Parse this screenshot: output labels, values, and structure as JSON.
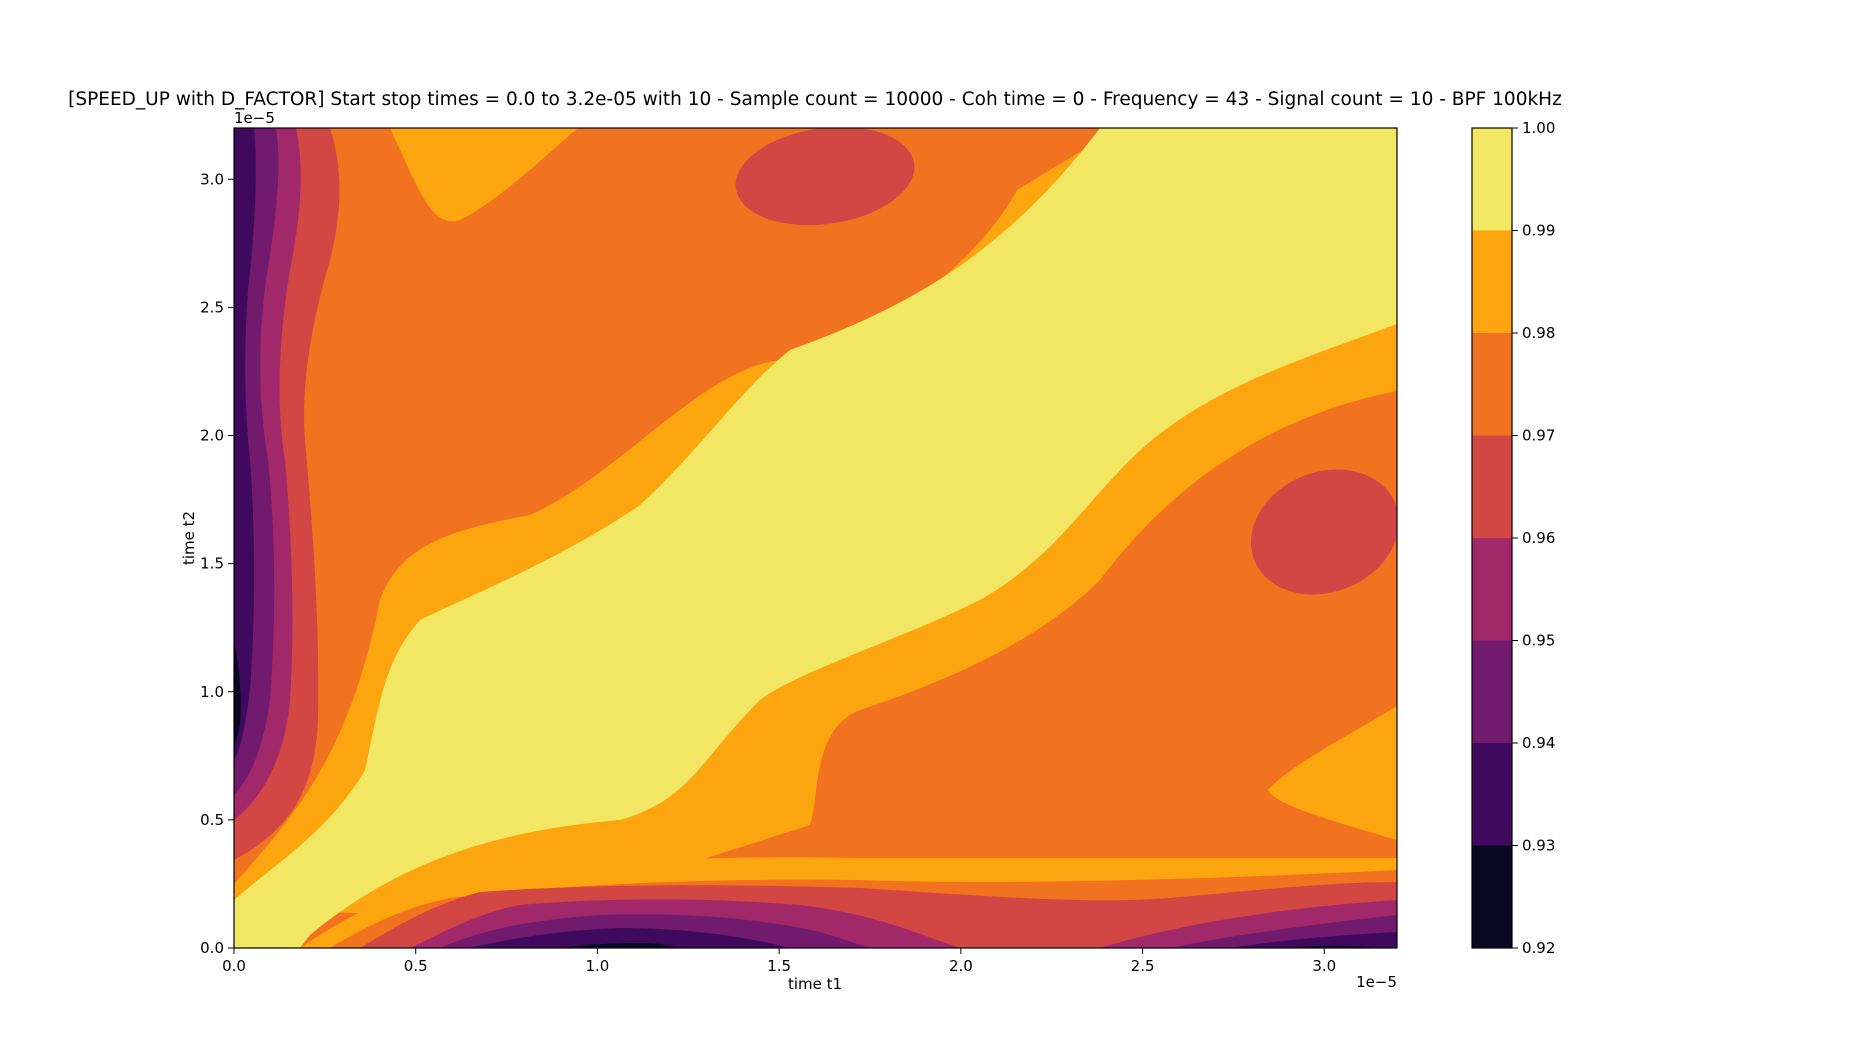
{
  "chart_data": {
    "type": "heatmap",
    "subtype": "filled-contour",
    "title": "[SPEED_UP with D_FACTOR] Start stop times = 0.0 to 3.2e-05 with 10 - Sample count = 10000 - Coh time = 0 - Frequency = 43 - Signal count = 10 - BPF 100kHz",
    "xlabel": "time t1",
    "ylabel": "time t2",
    "x_offset_label": "1e−5",
    "y_offset_label": "1e−5",
    "xlim": [
      0.0,
      3.2
    ],
    "ylim": [
      0.0,
      3.2
    ],
    "xticks": [
      "0.0",
      "0.5",
      "1.0",
      "1.5",
      "2.0",
      "2.5",
      "3.0"
    ],
    "yticks": [
      "0.0",
      "0.5",
      "1.0",
      "1.5",
      "2.0",
      "2.5",
      "3.0"
    ],
    "colorbar": {
      "levels": [
        0.92,
        0.93,
        0.94,
        0.95,
        0.96,
        0.97,
        0.98,
        0.99,
        1.0
      ],
      "tick_labels": [
        "0.92",
        "0.93",
        "0.94",
        "0.95",
        "0.96",
        "0.97",
        "0.98",
        "0.99",
        "1.00"
      ],
      "colors": [
        "#0a0722",
        "#3f0a5e",
        "#721a6e",
        "#a1296a",
        "#d24644",
        "#f1731f",
        "#fca50f",
        "#f2e763"
      ]
    },
    "colormap": "inferno",
    "grid": false
  }
}
